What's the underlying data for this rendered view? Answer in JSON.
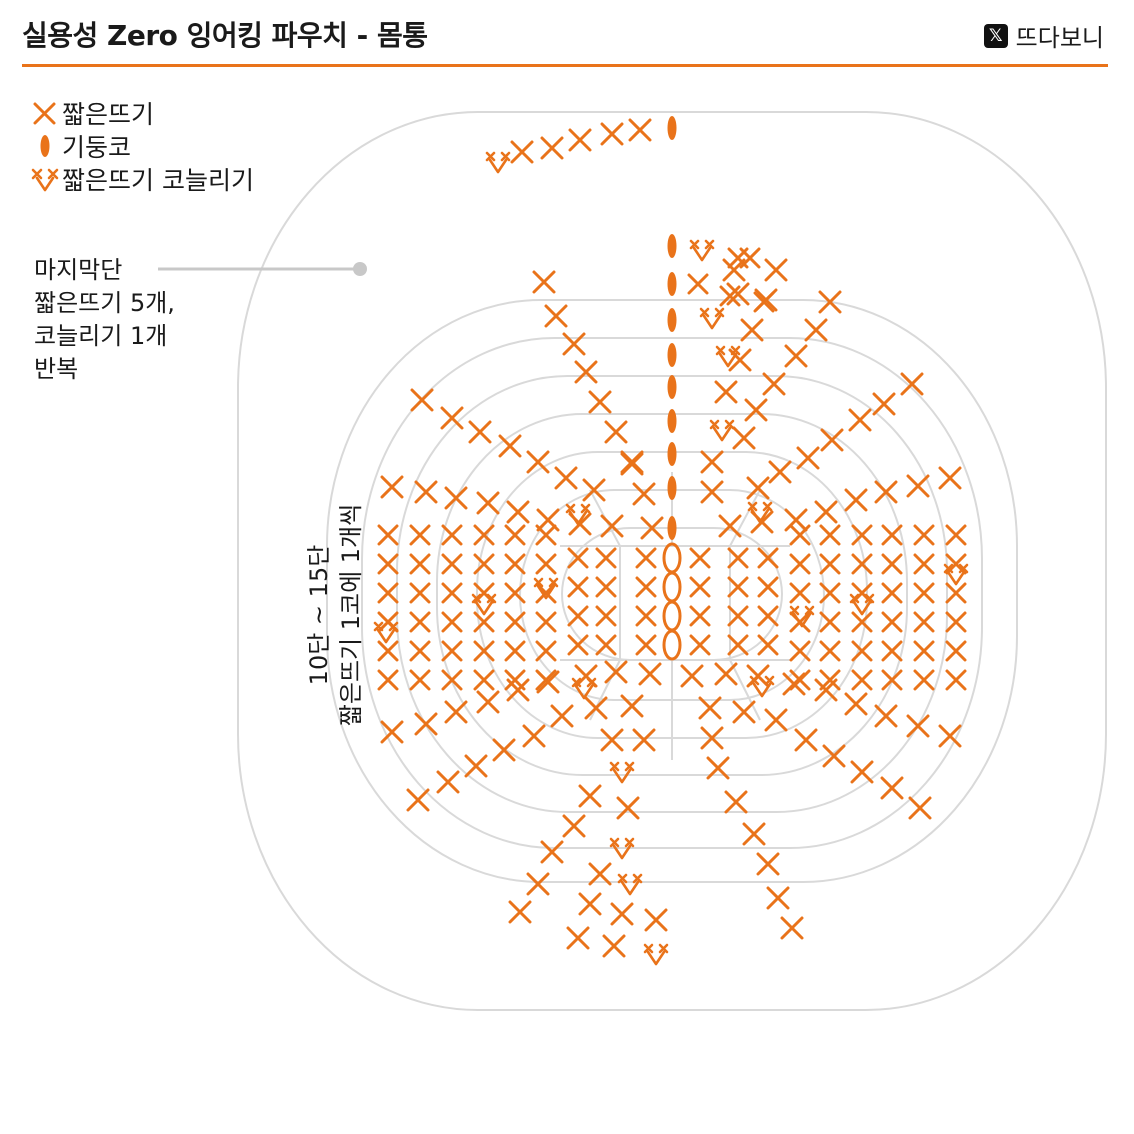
{
  "header": {
    "title": "실용성 Zero 잉어킹 파우치 - 몸통",
    "brand": "뜨다보니",
    "brand_icon": "x-logo-icon"
  },
  "colors": {
    "accent": "#e9731a",
    "ring": "#d9d9d9",
    "connector": "#c8c8c8",
    "text": "#1a1a1a"
  },
  "legend": [
    {
      "symbol": "cross",
      "label": "짧은뜨기"
    },
    {
      "symbol": "oval",
      "label": "기둥코"
    },
    {
      "symbol": "increase",
      "label": "짧은뜨기 코늘리기"
    }
  ],
  "note_last_round": {
    "lines": [
      "마지막단",
      "짧은뜨기 5개,",
      "코늘리기 1개",
      "반복"
    ]
  },
  "note_rounds_10_15": {
    "line1": "10단 ~ 15단",
    "line2": "짧은뜨기 1코에 1개씩"
  }
}
